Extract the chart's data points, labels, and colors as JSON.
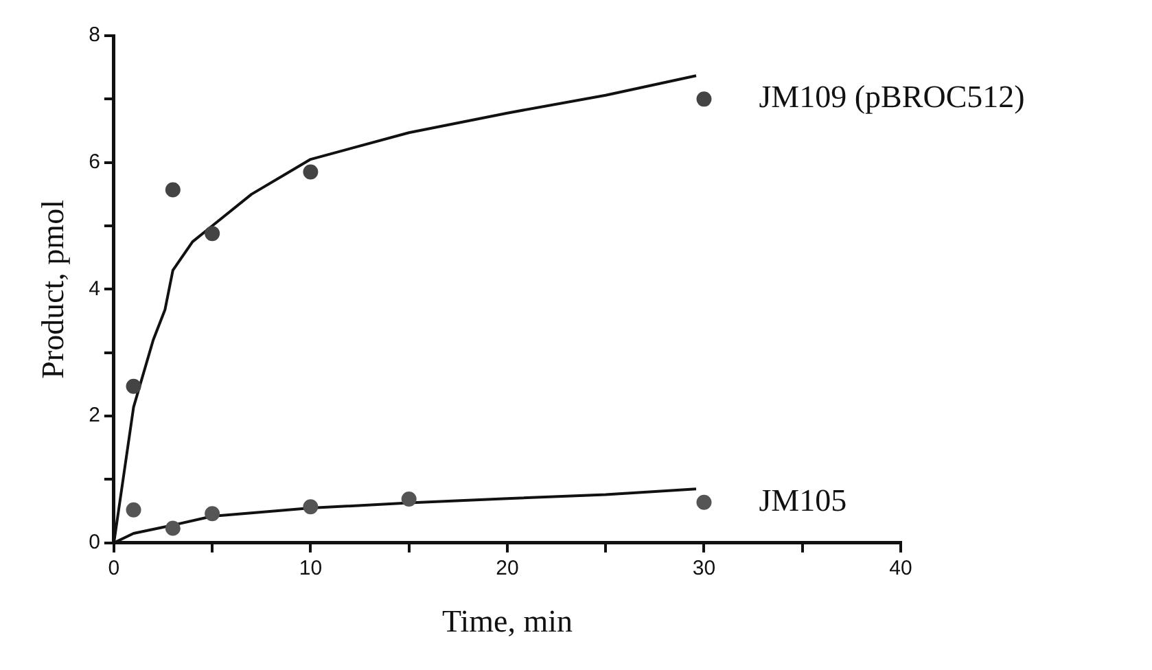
{
  "chart_data": {
    "type": "scatter",
    "xlabel": "Time, min",
    "ylabel": "Product, pmol",
    "xlim": [
      0,
      40
    ],
    "ylim": [
      0,
      8
    ],
    "xticks": [
      0,
      {
        "value": 5,
        "label": null
      },
      10,
      {
        "value": 15,
        "label": null
      },
      20,
      {
        "value": 25,
        "label": null
      },
      30,
      {
        "value": 35,
        "label": null
      },
      40
    ],
    "yticks": [
      0,
      {
        "value": 1,
        "label": null
      },
      2,
      {
        "value": 3,
        "label": null
      },
      4,
      {
        "value": 5,
        "label": null
      },
      6,
      {
        "value": 7,
        "label": null
      },
      8
    ],
    "grid": false,
    "legend": false,
    "marker": "circle",
    "series": [
      {
        "name": "JM109 (pBROC512)",
        "color": "#444444",
        "x": [
          1,
          3,
          5,
          10,
          30
        ],
        "values": [
          2.47,
          5.57,
          4.88,
          5.85,
          7.0
        ]
      },
      {
        "name": "JM105",
        "color": "#555555",
        "x": [
          1,
          3,
          5,
          10,
          15,
          30
        ],
        "values": [
          0.52,
          0.23,
          0.46,
          0.57,
          0.69,
          0.64
        ]
      },
      {
        "type": "line",
        "color": "#111111",
        "marker": "none",
        "x": [
          0,
          1,
          2,
          2.6,
          3,
          4,
          5,
          7,
          10,
          15,
          20,
          25,
          29.6
        ],
        "values": [
          0,
          2.14,
          3.2,
          3.68,
          4.3,
          4.75,
          5.0,
          5.5,
          6.05,
          6.47,
          6.78,
          7.06,
          7.37
        ]
      },
      {
        "type": "line",
        "color": "#111111",
        "marker": "none",
        "x": [
          0,
          1,
          3,
          5,
          10,
          15,
          20,
          25,
          29.6
        ],
        "values": [
          0,
          0.15,
          0.28,
          0.42,
          0.55,
          0.63,
          0.7,
          0.76,
          0.85
        ]
      }
    ]
  }
}
